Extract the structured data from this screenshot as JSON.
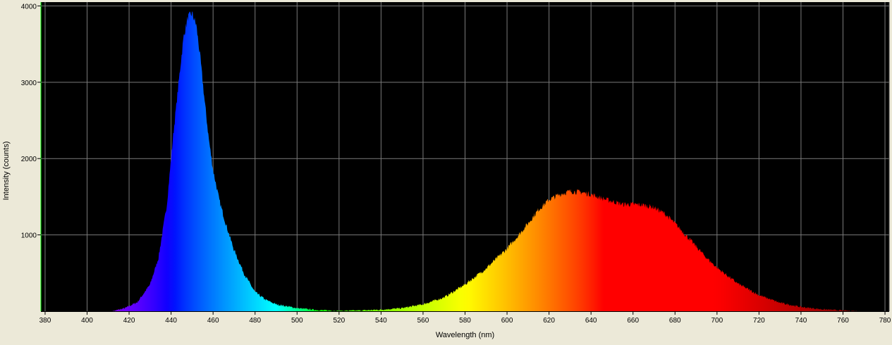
{
  "chart_data": {
    "type": "area",
    "xlabel": "Wavelength (nm)",
    "ylabel": "Intensity (counts)",
    "xlim": [
      378,
      782
    ],
    "ylim": [
      0,
      4050
    ],
    "x_ticks": [
      380,
      400,
      420,
      440,
      460,
      480,
      500,
      520,
      540,
      560,
      580,
      600,
      620,
      640,
      660,
      680,
      700,
      720,
      740,
      760,
      780
    ],
    "y_ticks": [
      1000,
      2000,
      3000,
      4000
    ],
    "grid": true,
    "fill": "wavelength-colored spectrum",
    "series": [
      {
        "x": [
          412,
          418,
          424,
          430,
          434,
          438,
          441,
          444,
          446,
          448,
          450,
          452,
          454,
          456,
          458,
          460,
          463,
          466,
          470,
          475,
          480,
          485,
          490,
          500,
          510,
          520,
          530,
          540,
          550,
          560,
          570,
          580,
          590,
          600,
          605,
          610,
          615,
          620,
          625,
          630,
          635,
          640,
          645,
          650,
          655,
          660,
          665,
          670,
          675,
          680,
          685,
          690,
          695,
          700,
          710,
          720,
          730,
          740,
          750,
          760,
          768
        ],
        "values": [
          0,
          40,
          120,
          350,
          700,
          1400,
          2300,
          3100,
          3600,
          3850,
          3900,
          3750,
          3300,
          2750,
          2250,
          1850,
          1450,
          1150,
          800,
          480,
          250,
          150,
          90,
          40,
          15,
          5,
          10,
          20,
          40,
          90,
          180,
          350,
          560,
          820,
          980,
          1150,
          1330,
          1460,
          1530,
          1570,
          1560,
          1530,
          1480,
          1440,
          1400,
          1400,
          1390,
          1360,
          1280,
          1150,
          1000,
          850,
          700,
          570,
          360,
          210,
          110,
          55,
          25,
          10,
          0
        ]
      }
    ]
  }
}
